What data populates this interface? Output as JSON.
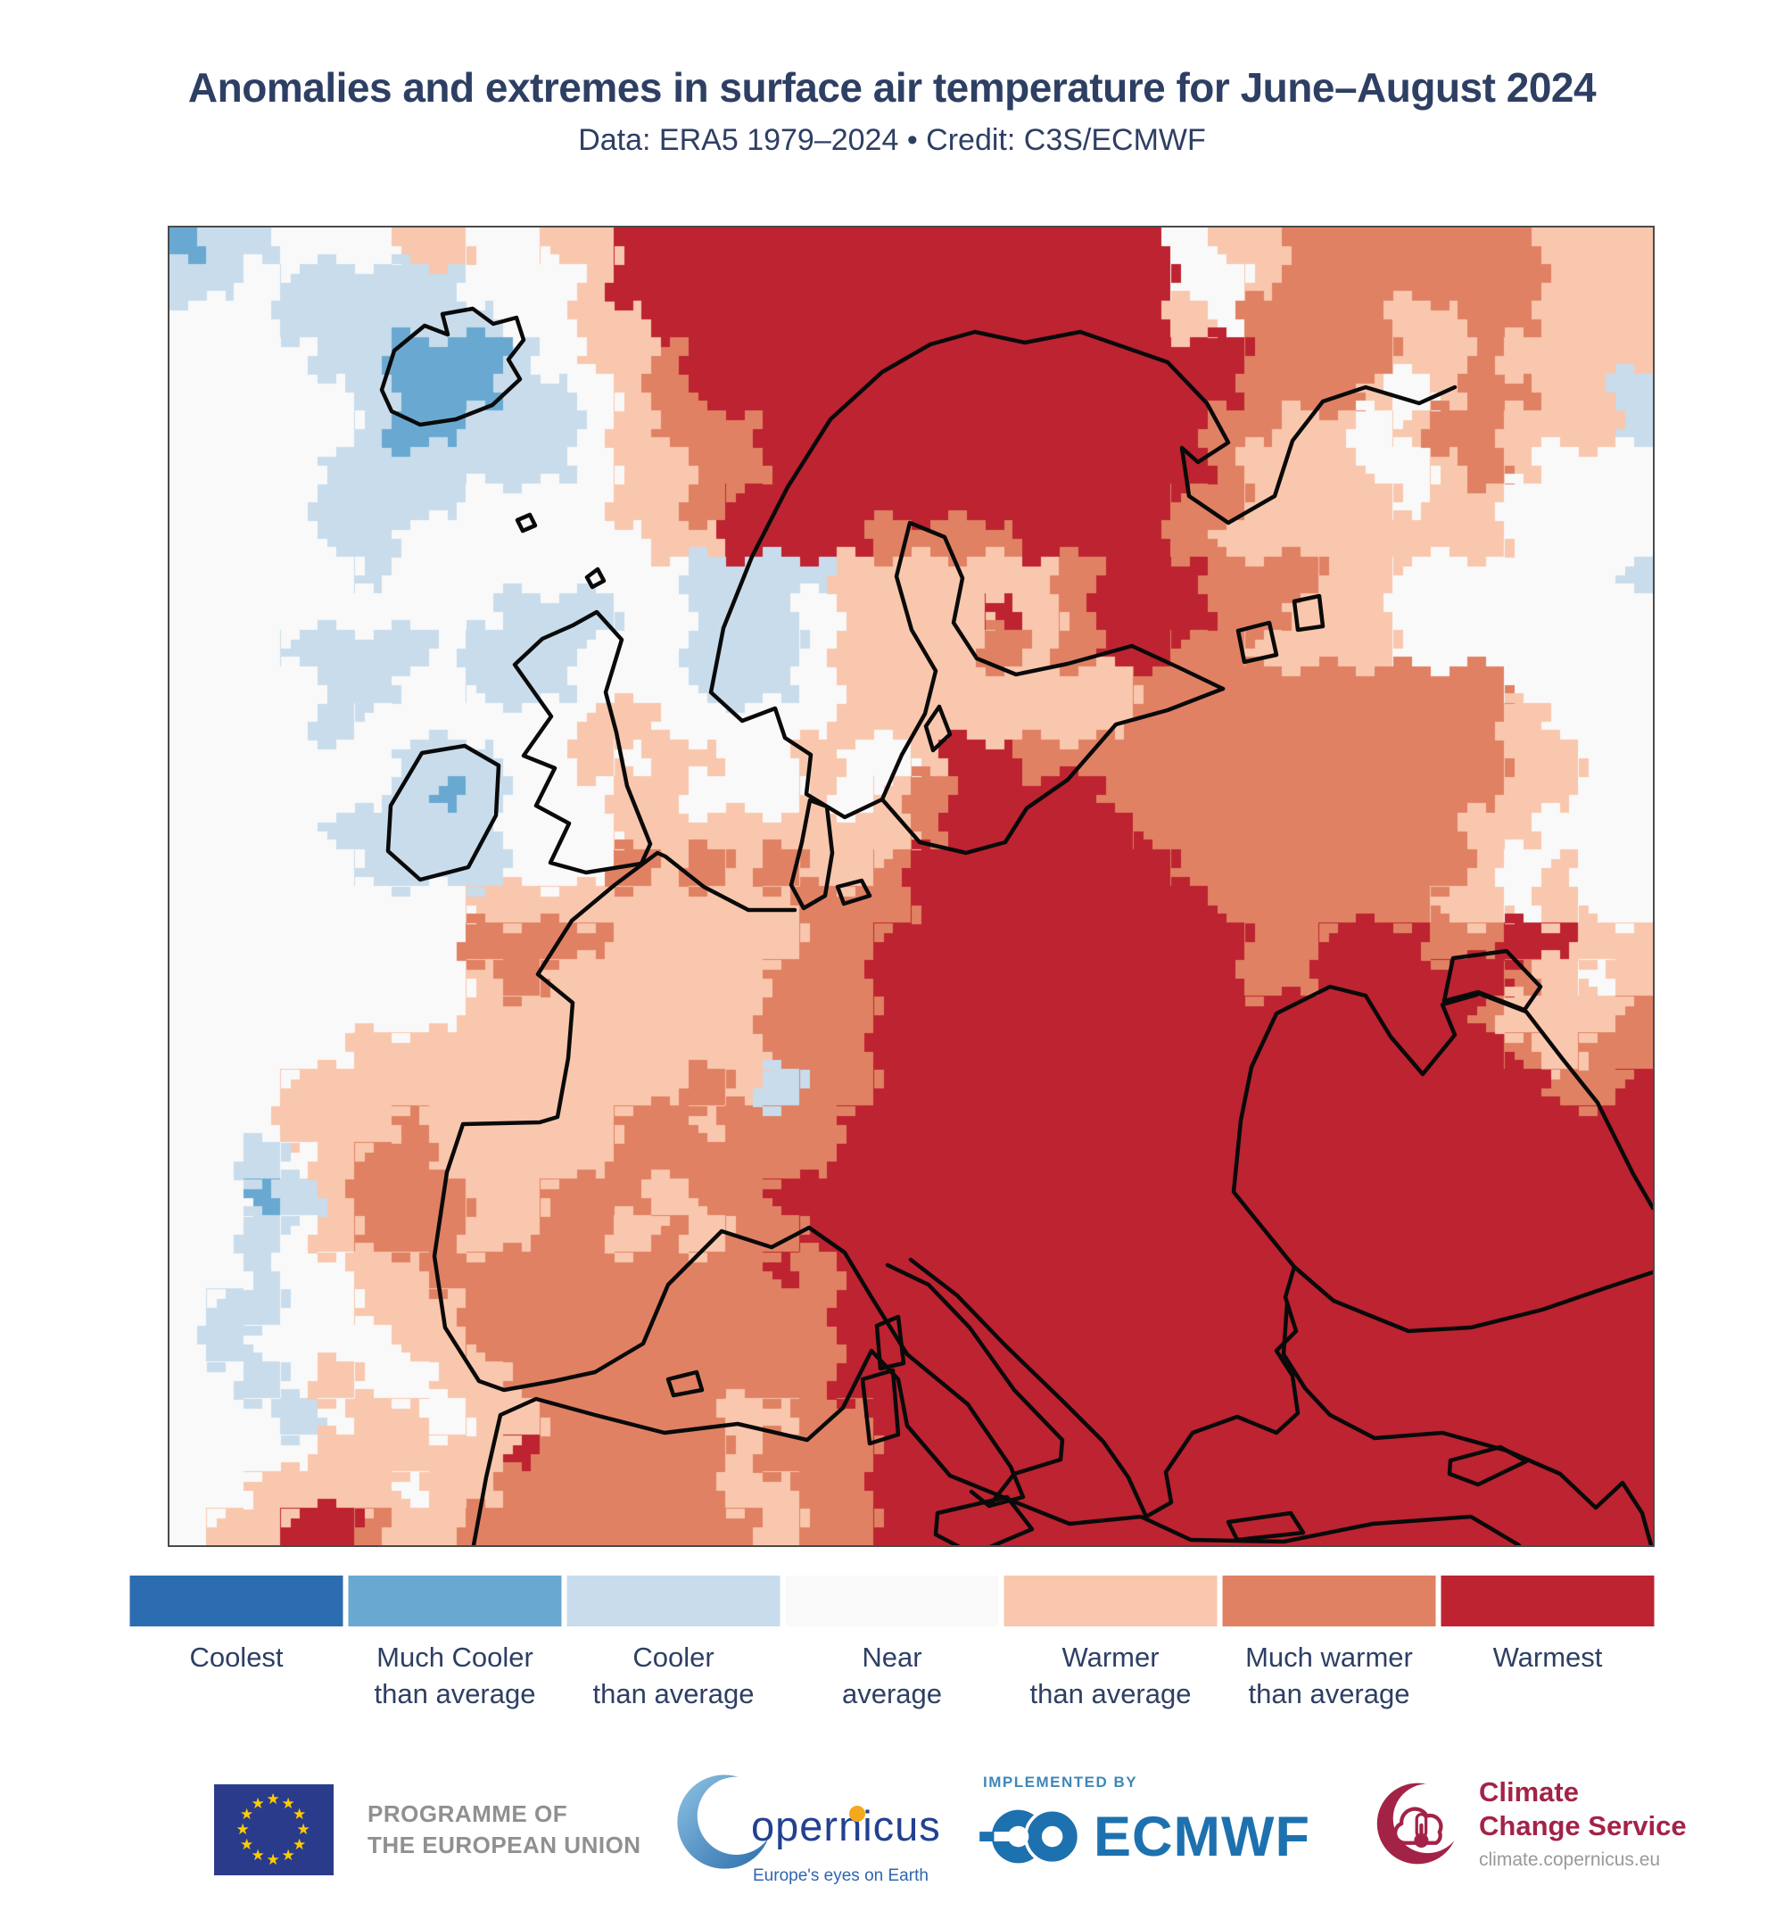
{
  "header": {
    "title": "Anomalies and extremes in surface air temperature for June–August 2024",
    "subtitle": "Data: ERA5 1979–2024 • Credit: C3S/ECMWF"
  },
  "chart_data": {
    "type": "heatmap",
    "title": "Anomalies and extremes in surface air temperature for June–August 2024",
    "categories": [
      "Coolest",
      "Much Cooler than average",
      "Cooler than average",
      "Near average",
      "Warmer than average",
      "Much warmer than average",
      "Warmest"
    ],
    "palette": [
      "#2c6db2",
      "#69a9d1",
      "#c8dcec",
      "#f9f9f9",
      "#f9c7ad",
      "#e08163",
      "#bd2330"
    ],
    "grid_cols": 40,
    "grid_rows": 36,
    "rows": [
      "1223334433446666666666666663445555555444",
      "2232222233346666666666666663345555555444",
      "3332222223344666666666666664355554455444",
      "3333221112344566666666666666655554454444",
      "3333321112234566666666666666655543455442",
      "3333321122234555666666666666554434554442",
      "3333222222234455666666666666544433454333",
      "3333222233334456666666666665544443443333",
      "3333223333333446666555566665444444443333",
      "3333323333333322224444445666555443333332",
      "3333333332223322234444645666554443333333",
      "3332222322233322234444545665544443333333",
      "3333223322233322234444444455555555553333",
      "3333233333344333334444444455555555554333",
      "3333332223343443343346655555555555554433",
      "3333332123334433343456666555555555554433",
      "3333222223334444444456666655555555544333",
      "3333322223335454544566666665555555543433",
      "3333333344444444455566666666555555443433",
      "3333333355554444455666666666655666556644",
      "3333333345444444555666666666655666665434",
      "3333333344444444555666666666666666654445",
      "3333344444444444555666666666666666665455",
      "3334444444444454255666666666666666666556",
      "3334445444445545556666666666666666666666",
      "3323455444445555556666666666666666666666",
      "3312455544555455666666666666666666666666",
      "3323455544554545566666666666666666666666",
      "3323344555555555656666666666666666666666",
      "3223344455555555556666666666666666666666",
      "3233334455555555556666666666666666666666",
      "3323433445555555556666666666666666666666",
      "3332344344555554455666666666666666666666",
      "3333444446555554555666666666666666666666",
      "3344443445555554455666666666666666666666",
      "3446654455555555455666666666666666666666"
    ]
  },
  "legend": {
    "items": [
      {
        "label": "Coolest",
        "color": "#2c6db2"
      },
      {
        "label": "Much Cooler\nthan average",
        "color": "#69a9d1"
      },
      {
        "label": "Cooler\nthan average",
        "color": "#c8dcec"
      },
      {
        "label": "Near\naverage",
        "color": "#f9f9f9"
      },
      {
        "label": "Warmer\nthan average",
        "color": "#f9c7ad"
      },
      {
        "label": "Much warmer\nthan average",
        "color": "#e08163"
      },
      {
        "label": "Warmest",
        "color": "#bd2330"
      }
    ]
  },
  "footer": {
    "eu": {
      "line1": "PROGRAMME OF",
      "line2": "THE EUROPEAN UNION"
    },
    "copernicus": {
      "wordmark": "opernicus",
      "tagline": "Europe's eyes on Earth"
    },
    "ecmwf": {
      "kicker": "IMPLEMENTED BY",
      "wordmark": "ECMWF"
    },
    "c3s": {
      "line1": "Climate",
      "line2": "Change Service",
      "url": "climate.copernicus.eu"
    }
  },
  "colors": {
    "title_navy": "#2e3f64",
    "map_border": "#4a4a4a",
    "coastline": "#0a0a0a",
    "eu_blue": "#2b3b8c",
    "eu_star_yellow": "#ffcc00",
    "logo_gray_text": "#909090",
    "copernicus_blue": "#22418f",
    "copernicus_tagline_blue": "#2f66ad",
    "copernicus_orange_dot": "#f5a81c",
    "ecmwf_blue": "#1d71ae",
    "c3s_crimson": "#a32347"
  }
}
